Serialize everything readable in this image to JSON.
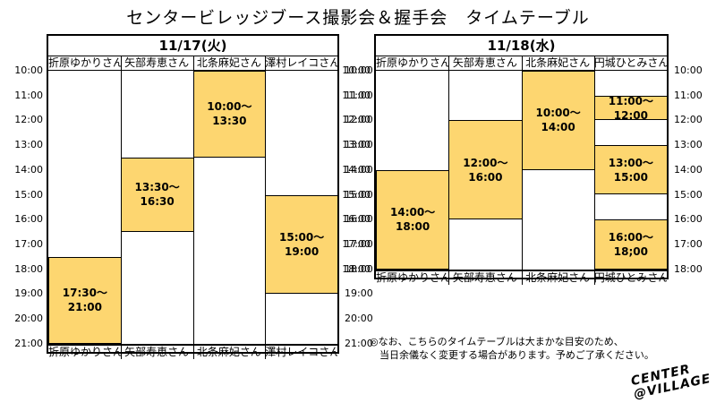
{
  "title": "センタービレッジブース撮影会＆握手会　タイムテーブル",
  "day1": {
    "date": "11/17(火)",
    "members": [
      "折原ゆかりさん",
      "矢部寿恵さん",
      "北条麻妃さん",
      "澤村レイコさん"
    ],
    "hours": [
      "10:00",
      "11:00",
      "12:00",
      "13:00",
      "14:00",
      "15:00",
      "16:00",
      "17:00",
      "18:00",
      "19:00",
      "20:00",
      "21:00"
    ],
    "slots": [
      {
        "col": 2,
        "start": 10.0,
        "end": 13.5,
        "label": "10:00～\n13:30"
      },
      {
        "col": 1,
        "start": 13.5,
        "end": 16.5,
        "label": "13:30～\n16:30"
      },
      {
        "col": 3,
        "start": 15.0,
        "end": 19.0,
        "label": "15:00～\n19:00"
      },
      {
        "col": 0,
        "start": 17.5,
        "end": 21.0,
        "label": "17:30～\n21:00"
      }
    ]
  },
  "day2": {
    "date": "11/18(水)",
    "members": [
      "折原ゆかりさん",
      "矢部寿恵さん",
      "北条麻妃さん",
      "円城ひとみさん"
    ],
    "hours": [
      "10:00",
      "11:00",
      "12:00",
      "13:00",
      "14:00",
      "15:00",
      "16:00",
      "17:00",
      "18:00"
    ],
    "slots": [
      {
        "col": 2,
        "start": 10.0,
        "end": 14.0,
        "label": "10:00～\n14:00"
      },
      {
        "col": 3,
        "start": 11.0,
        "end": 12.0,
        "label": "11:00～\n12:00"
      },
      {
        "col": 1,
        "start": 12.0,
        "end": 16.0,
        "label": "12:00～\n16:00"
      },
      {
        "col": 3,
        "start": 13.0,
        "end": 15.0,
        "label": "13:00～\n15:00"
      },
      {
        "col": 0,
        "start": 14.0,
        "end": 18.0,
        "label": "14:00～\n18:00"
      },
      {
        "col": 3,
        "start": 16.0,
        "end": 18.0,
        "label": "16:00～\n18;00"
      }
    ]
  },
  "note_lines": [
    "◎なお、こちらのタイムテーブルは大まかな目安のため、",
    "　当日余儀なく変更する場合があります。予めご了承ください。"
  ],
  "logo_lines": [
    "CENTER",
    "@VILLAGE"
  ],
  "colors": {
    "block": "#fdd670",
    "line": "#000000"
  }
}
